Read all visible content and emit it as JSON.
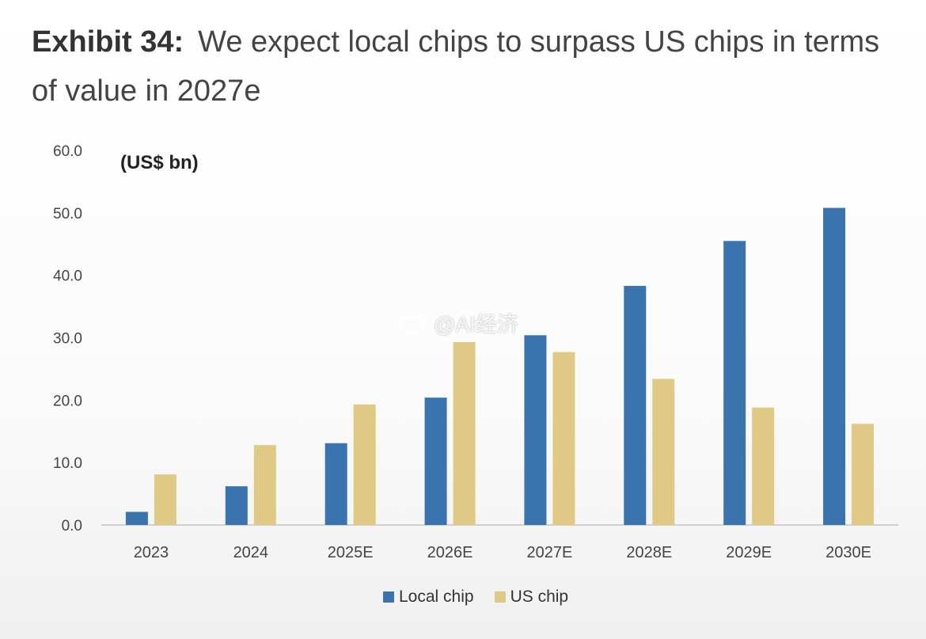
{
  "header": {
    "exhibit": "Exhibit 34:",
    "title": "We expect local chips to surpass US chips in terms of value in 2027e"
  },
  "watermark": {
    "icon": "weibo-icon",
    "text": "@AI经济"
  },
  "chart_data": {
    "type": "bar",
    "unit_label": "(US$ bn)",
    "categories": [
      "2023",
      "2024",
      "2025E",
      "2026E",
      "2027E",
      "2028E",
      "2029E",
      "2030E"
    ],
    "series": [
      {
        "name": "Local chip",
        "color": "#3b73ae",
        "values": [
          2.1,
          6.2,
          13.1,
          20.4,
          30.4,
          38.3,
          45.5,
          50.8
        ]
      },
      {
        "name": "US chip",
        "color": "#e0c985",
        "values": [
          8.1,
          12.8,
          19.3,
          29.3,
          27.7,
          23.4,
          18.8,
          16.2
        ]
      }
    ],
    "ylim": [
      0,
      60
    ],
    "yticks": [
      "0.0",
      "10.0",
      "20.0",
      "30.0",
      "40.0",
      "50.0",
      "60.0"
    ],
    "xlabel": "",
    "ylabel": "",
    "legend_position": "bottom-center"
  }
}
